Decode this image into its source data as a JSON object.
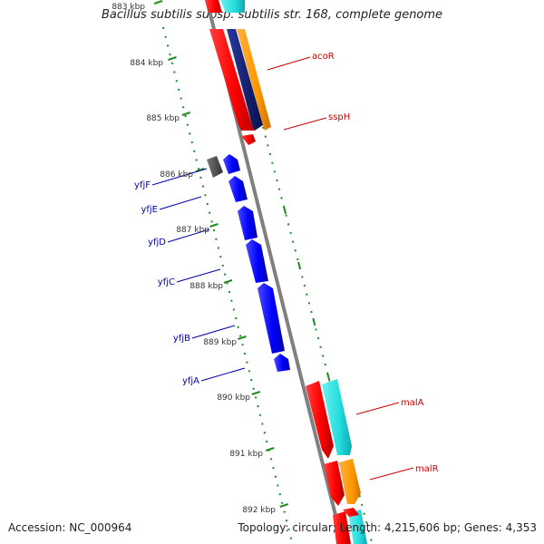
{
  "title": "Bacillus subtilis subsp. subtilis str. 168, complete genome",
  "footer": {
    "accession": "Accession: NC_000964",
    "summary": "Topology: circular; Length: 4,215,606 bp; Genes: 4,353"
  },
  "colors": {
    "backbone": "#808080",
    "tick": "#228B22",
    "red": "#ff0000",
    "blue": "#0000ff",
    "navy": "#0a1a6e",
    "orange": "#ff9900",
    "cyan": "#22dddd",
    "gray": "#555555",
    "label_red": "#cc0000",
    "label_blue": "#0000aa"
  },
  "ticks": [
    "883 kbp",
    "884 kbp",
    "885 kbp",
    "886 kbp",
    "887 kbp",
    "888 kbp",
    "889 kbp",
    "890 kbp",
    "891 kbp",
    "892 kbp"
  ],
  "gene_labels_right": [
    "acoR",
    "sspH",
    "malA",
    "malR"
  ],
  "gene_labels_left": [
    "yfjF",
    "yfjE",
    "yfjD",
    "yfjC",
    "yfjB",
    "yfjA"
  ]
}
